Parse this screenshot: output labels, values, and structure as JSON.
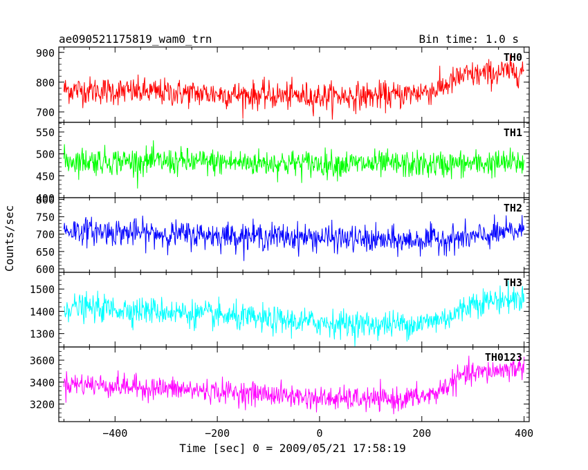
{
  "header": {
    "title": "ae090521175819_wam0_trn",
    "bin_time": "Bin time: 1.0 s"
  },
  "axes": {
    "ylabel": "Counts/sec",
    "xlabel": "Time [sec] 0 = 2009/05/21 17:58:19"
  },
  "chart_data": {
    "type": "line",
    "x_range": [
      -510,
      410
    ],
    "x_ticks": [
      -400,
      -200,
      0,
      200,
      400
    ],
    "x_tick_labels": [
      "−400",
      "−200",
      "0",
      "200",
      "400"
    ],
    "x_data_range": [
      -500,
      400
    ],
    "x_step": 1,
    "panels": [
      {
        "name": "TH0",
        "color": "#ff0000",
        "ylim": [
          665,
          918
        ],
        "yticks": [
          700,
          800,
          900
        ],
        "ytick_labels": [
          "700",
          "800",
          "900"
        ],
        "trend": [
          [
            -500,
            775
          ],
          [
            -300,
            765
          ],
          [
            -100,
            755
          ],
          [
            0,
            752
          ],
          [
            150,
            755
          ],
          [
            230,
            775
          ],
          [
            280,
            820
          ],
          [
            400,
            840
          ]
        ],
        "noise": 42
      },
      {
        "name": "TH1",
        "color": "#00ff00",
        "ylim": [
          400,
          572
        ],
        "yticks": [
          400,
          450,
          500,
          550
        ],
        "ytick_labels": [
          "400",
          "450",
          "500",
          "550"
        ],
        "trend": [
          [
            -500,
            485
          ],
          [
            -300,
            482
          ],
          [
            0,
            478
          ],
          [
            200,
            475
          ],
          [
            400,
            480
          ]
        ],
        "noise": 28
      },
      {
        "name": "TH2",
        "color": "#0000ff",
        "ylim": [
          590,
          805
        ],
        "yticks": [
          600,
          650,
          700,
          750,
          800
        ],
        "ytick_labels": [
          "600",
          "650",
          "700",
          "750",
          "800"
        ],
        "trend": [
          [
            -500,
            712
          ],
          [
            -300,
            700
          ],
          [
            0,
            690
          ],
          [
            150,
            680
          ],
          [
            300,
            690
          ],
          [
            400,
            712
          ]
        ],
        "noise": 35
      },
      {
        "name": "TH3",
        "color": "#00ffff",
        "ylim": [
          1240,
          1575
        ],
        "yticks": [
          1300,
          1400,
          1500
        ],
        "ytick_labels": [
          "1300",
          "1400",
          "1500"
        ],
        "trend": [
          [
            -500,
            1420
          ],
          [
            -300,
            1400
          ],
          [
            -100,
            1360
          ],
          [
            100,
            1340
          ],
          [
            200,
            1345
          ],
          [
            260,
            1380
          ],
          [
            300,
            1440
          ],
          [
            400,
            1460
          ]
        ],
        "noise": 55
      },
      {
        "name": "TH0123",
        "color": "#ff00ff",
        "ylim": [
          3040,
          3720
        ],
        "yticks": [
          3200,
          3400,
          3600
        ],
        "ytick_labels": [
          "3200",
          "3400",
          "3600"
        ],
        "trend": [
          [
            -500,
            3390
          ],
          [
            -300,
            3340
          ],
          [
            -100,
            3290
          ],
          [
            0,
            3250
          ],
          [
            150,
            3240
          ],
          [
            220,
            3280
          ],
          [
            280,
            3460
          ],
          [
            400,
            3540
          ]
        ],
        "noise": 95
      }
    ]
  }
}
